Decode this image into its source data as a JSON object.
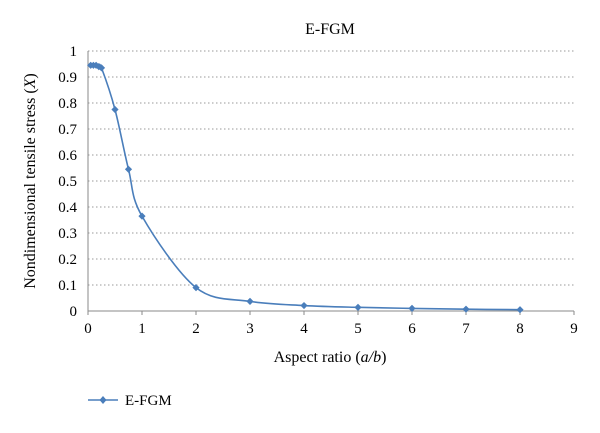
{
  "chart_data": {
    "type": "scatter",
    "title": "E-FGM",
    "xlabel_parts": [
      "Aspect ratio (",
      "a/b",
      ")"
    ],
    "ylabel_parts": [
      "Nondimensional tensile stress (",
      "X",
      ")"
    ],
    "xlim": [
      0,
      9
    ],
    "ylim": [
      0,
      1
    ],
    "x_ticks": [
      0,
      1,
      2,
      3,
      4,
      5,
      6,
      7,
      8,
      9
    ],
    "y_ticks": [
      0,
      0.1,
      0.2,
      0.3,
      0.4,
      0.5,
      0.6,
      0.7,
      0.8,
      0.9,
      1
    ],
    "y_tick_labels": [
      "0",
      "0.1",
      "0.2",
      "0.3",
      "0.4",
      "0.5",
      "0.6",
      "0.7",
      "0.8",
      "0.9",
      "1"
    ],
    "grid": {
      "y": true,
      "style": "dotted"
    },
    "legend": "bottom-left",
    "series": [
      {
        "name": "E-FGM",
        "color": "#4a7ebb",
        "marker": "diamond",
        "smooth": true,
        "x": [
          0.05,
          0.1,
          0.15,
          0.2,
          0.25,
          0.5,
          0.75,
          1,
          2,
          3,
          4,
          5,
          6,
          7,
          8
        ],
        "y": [
          0.945,
          0.945,
          0.945,
          0.94,
          0.935,
          0.775,
          0.545,
          0.365,
          0.09,
          0.037,
          0.021,
          0.014,
          0.01,
          0.007,
          0.005
        ]
      }
    ]
  }
}
